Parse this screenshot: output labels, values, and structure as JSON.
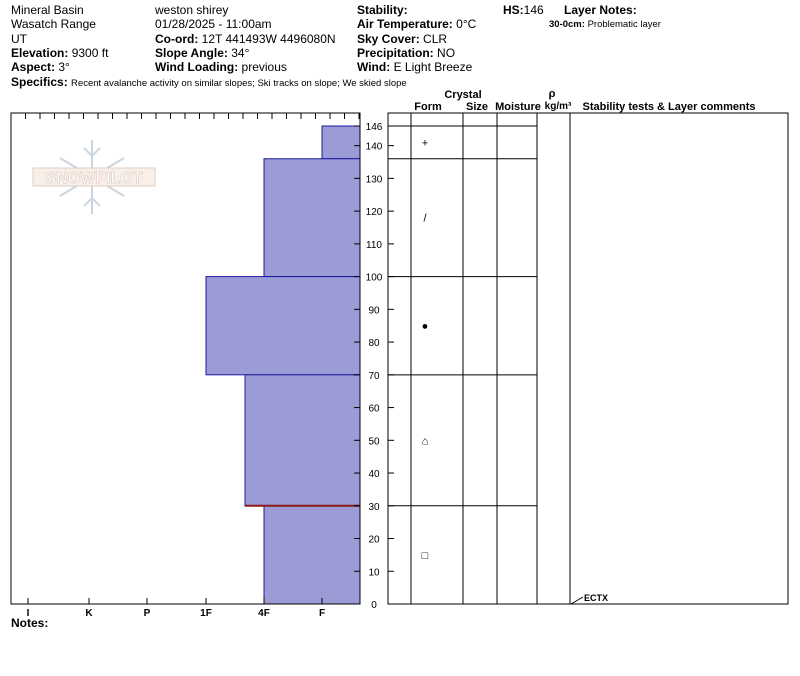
{
  "header": {
    "location": "Mineral Basin",
    "range": "Wasatch Range",
    "state": "UT",
    "elevation_label": "Elevation:",
    "elevation": "9300 ft",
    "aspect_label": "Aspect:",
    "aspect": "3°",
    "observer": "weston shirey",
    "datetime": "01/28/2025 - 11:00am",
    "coord_label": "Co-ord:",
    "coord": "12T 441493W 4496080N",
    "slope_label": "Slope Angle:",
    "slope": "34°",
    "wind_loading_label": "Wind Loading:",
    "wind_loading": "previous",
    "stability_label": "Stability:",
    "stability": "",
    "air_temp_label": "Air Temperature:",
    "air_temp": "0°C",
    "sky_label": "Sky Cover:",
    "sky": "CLR",
    "precip_label": "Precipitation:",
    "precip": "NO",
    "wind_label": "Wind:",
    "wind": "E Light Breeze",
    "hs_label": "HS:",
    "hs": "146",
    "layer_notes_label": "Layer Notes:",
    "layer_note_range": "30-0cm:",
    "layer_note_text": "Problematic layer",
    "specifics_label": "Specifics:",
    "specifics": "Recent avalanche activity on similar slopes; Ski tracks on slope; We skied slope"
  },
  "logo_text": "SNOWPILOT",
  "columns": {
    "form": "Form",
    "crystal": "Crystal",
    "size": "Size",
    "moisture": "Moisture",
    "rho": "ρ",
    "density_unit": "kg/m³",
    "stability_tests": "Stability tests & Layer comments"
  },
  "notes_label": "Notes:",
  "colors": {
    "layer_fill": "#9b9bd6",
    "layer_stroke": "#1a1aa0",
    "problem_line": "#8b1a1a"
  },
  "chart_data": {
    "type": "bar",
    "title": "",
    "xlabel": "",
    "ylabel": "",
    "ylim": [
      0,
      146
    ],
    "hardness_scale": [
      "I",
      "K",
      "P",
      "1F",
      "4F",
      "F"
    ],
    "depth_ticks": [
      0,
      10,
      20,
      30,
      40,
      50,
      60,
      70,
      80,
      90,
      100,
      110,
      120,
      130,
      140,
      146
    ],
    "layers": [
      {
        "bottom": 136,
        "top": 146,
        "hardness": "F"
      },
      {
        "bottom": 100,
        "top": 136,
        "hardness": "4F"
      },
      {
        "bottom": 70,
        "top": 100,
        "hardness": "1F"
      },
      {
        "bottom": 30,
        "top": 70,
        "hardness": "4F-"
      },
      {
        "bottom": 0,
        "top": 30,
        "hardness": "4F"
      }
    ],
    "problem_layer_depth": 30,
    "grain_forms": [
      {
        "depth": 141,
        "symbol": "+"
      },
      {
        "depth": 118,
        "symbol": "/"
      },
      {
        "depth": 85,
        "symbol": "●"
      },
      {
        "depth": 50,
        "symbol": "⌂"
      },
      {
        "depth": 15,
        "symbol": "□"
      }
    ],
    "test_results": [
      {
        "depth": 0,
        "label": "ECTX"
      }
    ]
  }
}
